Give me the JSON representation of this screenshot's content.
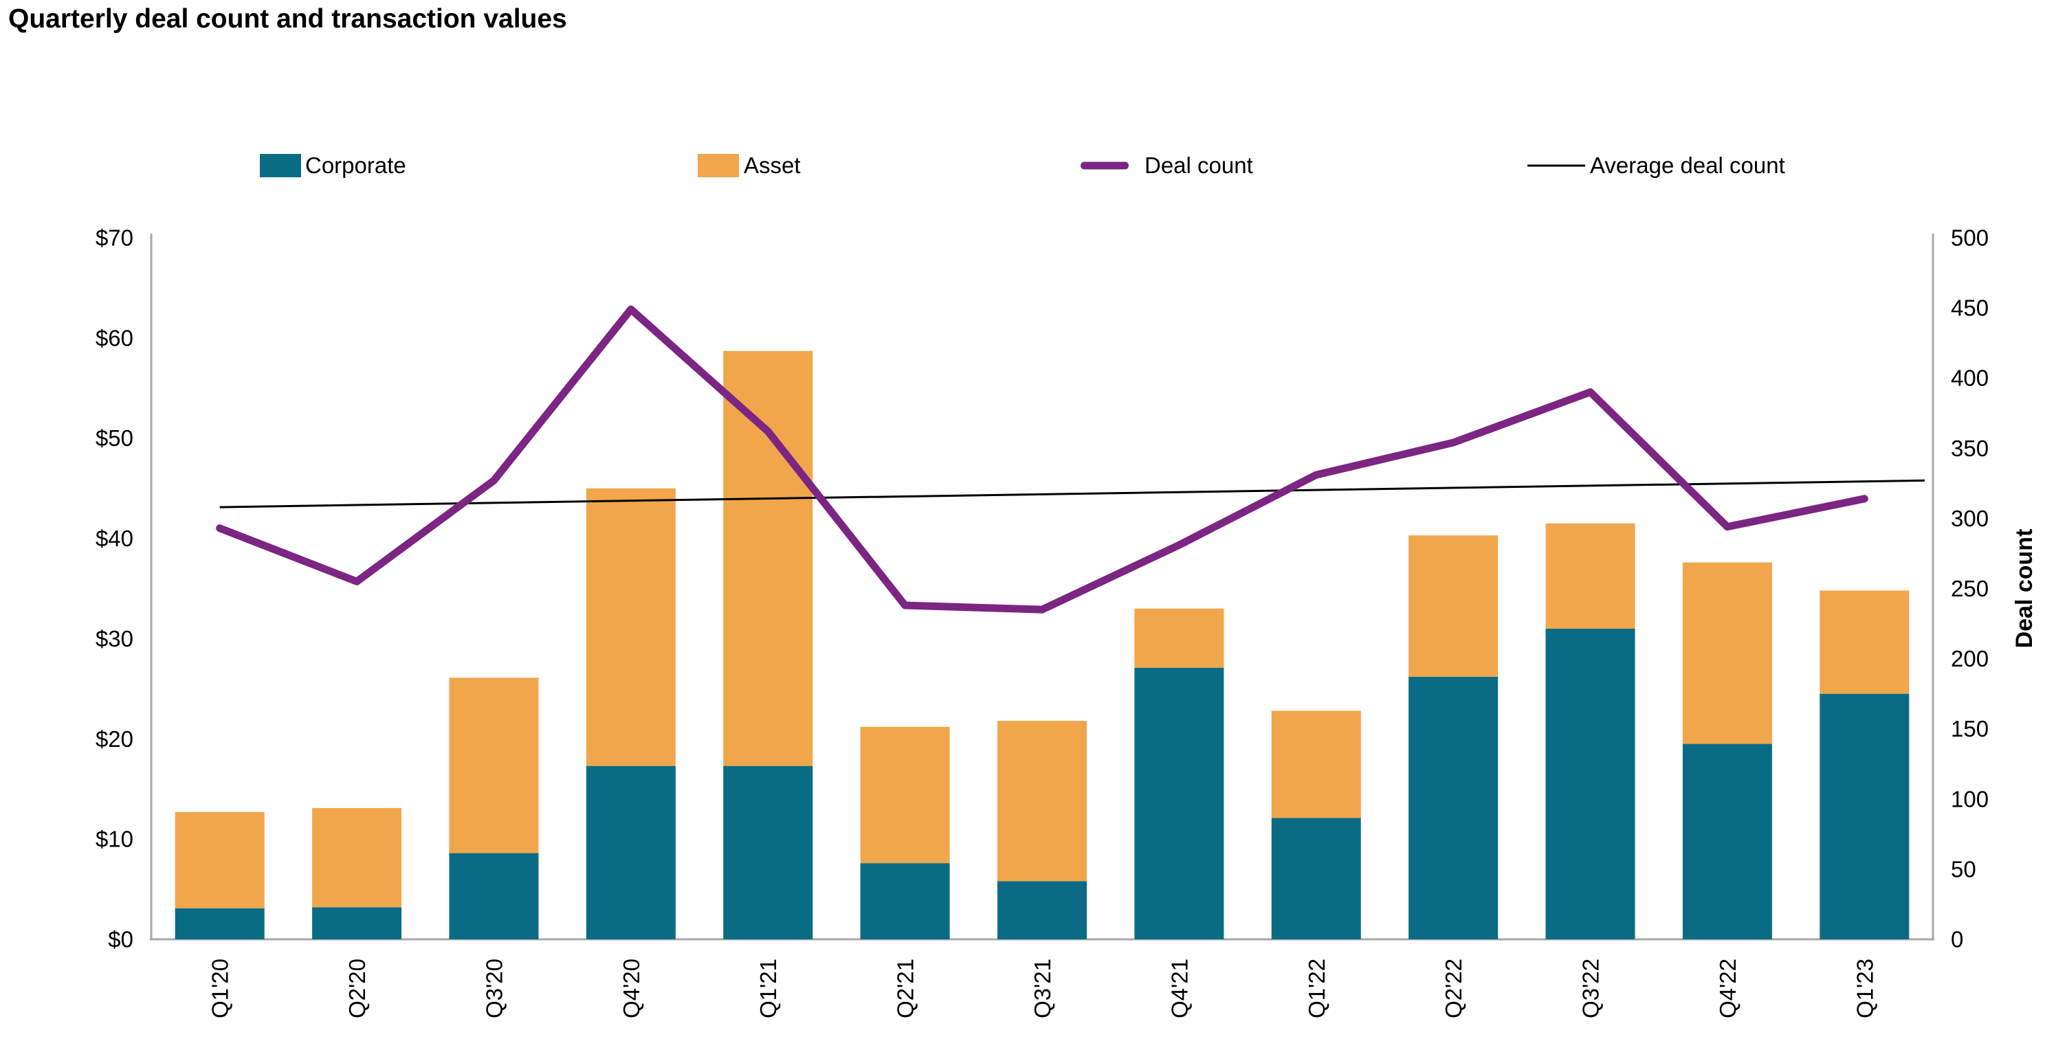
{
  "title": "Quarterly deal count and transaction values",
  "legend": [
    {
      "label": "Corporate",
      "marker": "rect",
      "color": "#0A6C84"
    },
    {
      "label": "Asset",
      "marker": "rect",
      "color": "#F1A64C"
    },
    {
      "label": "Deal count",
      "marker": "thick-line",
      "color": "#7C2583"
    },
    {
      "label": "Average deal count",
      "marker": "thin-line",
      "color": "#000000"
    }
  ],
  "chart_data": {
    "type": "bar",
    "subtype": "stacked-bars-with-lines",
    "categories": [
      "Q1'20",
      "Q2'20",
      "Q3'20",
      "Q4'20",
      "Q1'21",
      "Q2'21",
      "Q3'21",
      "Q4'21",
      "Q1'22",
      "Q2'22",
      "Q3'22",
      "Q4'22",
      "Q1'23"
    ],
    "series": [
      {
        "name": "Corporate",
        "type": "bar",
        "axis": "left",
        "color": "#0A6C84",
        "values": [
          3.1,
          3.2,
          8.6,
          17.3,
          17.3,
          7.6,
          5.8,
          27.1,
          12.1,
          26.2,
          31.0,
          19.5,
          24.5
        ]
      },
      {
        "name": "Asset",
        "type": "bar",
        "axis": "left",
        "color": "#F1A64C",
        "values": [
          9.6,
          9.9,
          17.5,
          27.7,
          41.4,
          13.6,
          16.0,
          5.9,
          10.7,
          14.1,
          10.5,
          18.1,
          10.3
        ]
      },
      {
        "name": "Deal count",
        "type": "line",
        "axis": "right",
        "color": "#7C2583",
        "values": [
          293,
          255,
          327,
          449,
          362,
          238,
          235,
          281,
          331,
          354,
          390,
          294,
          314
        ]
      },
      {
        "name": "Average deal count",
        "type": "trend-line",
        "axis": "right",
        "color": "#000000",
        "start_value": 308,
        "end_value": 327
      }
    ],
    "left_axis": {
      "min": 0,
      "max": 70,
      "step": 10,
      "tick_labels": [
        "$0",
        "$10",
        "$20",
        "$30",
        "$40",
        "$50",
        "$60",
        "$70"
      ]
    },
    "right_axis": {
      "min": 0,
      "max": 500,
      "step": 50,
      "title": "Deal count",
      "tick_labels": [
        "0",
        "50",
        "100",
        "150",
        "200",
        "250",
        "300",
        "350",
        "400",
        "450",
        "500"
      ]
    },
    "grid": false,
    "legend_position": "top"
  }
}
